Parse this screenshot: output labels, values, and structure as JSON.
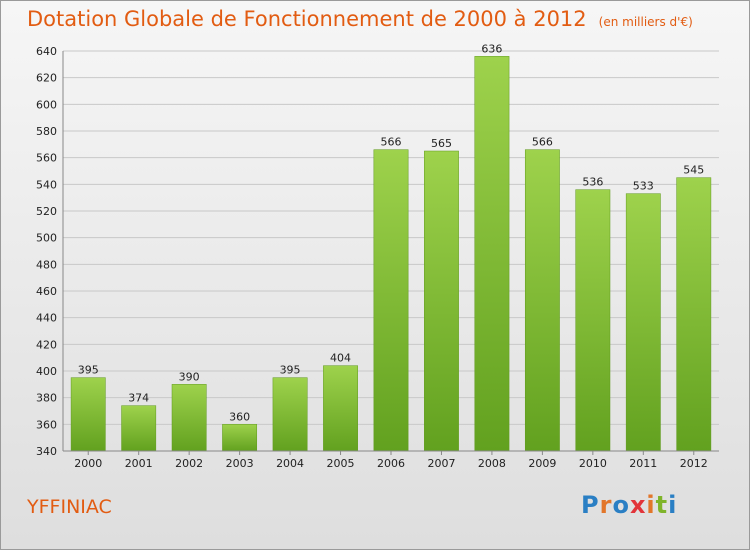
{
  "header": {
    "title": "Dotation Globale de Fonctionnement de 2000 à 2012",
    "subtitle": "(en milliers d'€)"
  },
  "footer": {
    "city": "YFFINIAC",
    "logo_text": "Proxiti",
    "logo_colors": [
      "#2a7fc4",
      "#e2762a",
      "#2a7fc4",
      "#e2343a",
      "#e2762a",
      "#7fb42a",
      "#2a7fc4"
    ]
  },
  "chart_data": {
    "type": "bar",
    "categories": [
      "2000",
      "2001",
      "2002",
      "2003",
      "2004",
      "2005",
      "2006",
      "2007",
      "2008",
      "2009",
      "2010",
      "2011",
      "2012"
    ],
    "values": [
      395,
      374,
      390,
      360,
      395,
      404,
      566,
      565,
      636,
      566,
      536,
      533,
      545
    ],
    "title": "Dotation Globale de Fonctionnement de 2000 à 2012",
    "subtitle": "(en milliers d'€)",
    "xlabel": "",
    "ylabel": "",
    "ylim": [
      340,
      640
    ],
    "yticks": [
      340,
      360,
      380,
      400,
      420,
      440,
      460,
      480,
      500,
      520,
      540,
      560,
      580,
      600,
      620,
      640
    ],
    "grid": true,
    "bar_color": "#8cc63f",
    "bar_color_dark": "#5f9a1c"
  }
}
